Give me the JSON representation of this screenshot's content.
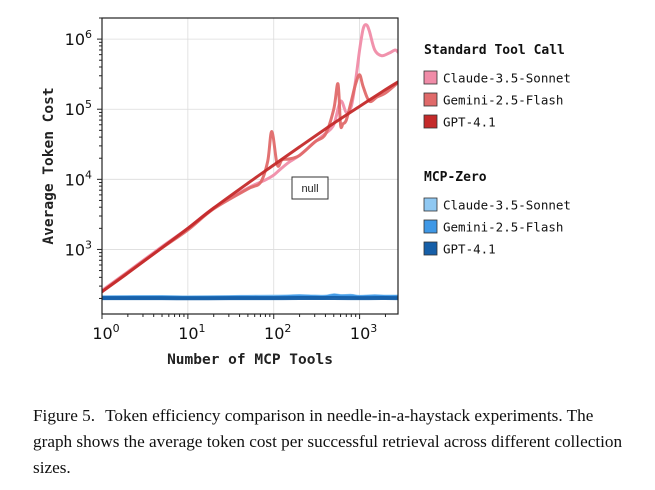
{
  "chart_data": {
    "type": "line",
    "x_scale": "log",
    "y_scale": "log",
    "xlabel": "Number of MCP Tools",
    "ylabel": "Average Token Cost",
    "xlim": [
      1,
      2800
    ],
    "ylim": [
      120,
      2000000
    ],
    "x_ticks": [
      1,
      10,
      100,
      1000
    ],
    "x_tick_labels": [
      {
        "base": "10",
        "exp": "0"
      },
      {
        "base": "10",
        "exp": "1"
      },
      {
        "base": "10",
        "exp": "2"
      },
      {
        "base": "10",
        "exp": "3"
      }
    ],
    "y_ticks": [
      1000,
      10000,
      100000,
      1000000
    ],
    "y_tick_labels": [
      {
        "base": "10",
        "exp": "3"
      },
      {
        "base": "10",
        "exp": "4"
      },
      {
        "base": "10",
        "exp": "5"
      },
      {
        "base": "10",
        "exp": "6"
      }
    ],
    "grid": true,
    "annotation": "null",
    "legend": {
      "placement": "right",
      "groups": [
        {
          "title": "Standard Tool Call",
          "entries": [
            {
              "label": "Claude-3.5-Sonnet",
              "color": "#f08ca8"
            },
            {
              "label": "Gemini-2.5-Flash",
              "color": "#e06a6a"
            },
            {
              "label": "GPT-4.1",
              "color": "#c42a2a"
            }
          ]
        },
        {
          "title": "MCP-Zero",
          "entries": [
            {
              "label": "Claude-3.5-Sonnet",
              "color": "#8fc8f2"
            },
            {
              "label": "Gemini-2.5-Flash",
              "color": "#3f98e6"
            },
            {
              "label": "GPT-4.1",
              "color": "#165fa8"
            }
          ]
        }
      ]
    },
    "series": [
      {
        "name": "Standard Tool Call / Claude-3.5-Sonnet",
        "color": "#f08ca8",
        "width": 3,
        "x": [
          1,
          2,
          5,
          10,
          20,
          50,
          80,
          100,
          120,
          150,
          200,
          300,
          400,
          500,
          600,
          700,
          800,
          900,
          1000,
          1100,
          1200,
          1300,
          1500,
          1800,
          2200,
          2600,
          2800
        ],
        "y": [
          260,
          480,
          1100,
          2000,
          3900,
          7500,
          9800,
          11500,
          14000,
          17500,
          22000,
          34000,
          45000,
          60000,
          130000,
          90000,
          110000,
          260000,
          700000,
          1400000,
          1600000,
          1300000,
          700000,
          580000,
          630000,
          700000,
          650000
        ]
      },
      {
        "name": "Standard Tool Call / Gemini-2.5-Flash",
        "color": "#e06a6a",
        "width": 3,
        "x": [
          1,
          2,
          5,
          10,
          20,
          50,
          70,
          85,
          95,
          110,
          125,
          150,
          200,
          300,
          400,
          500,
          560,
          600,
          640,
          700,
          800,
          900,
          1000,
          1100,
          1300,
          1600,
          2000,
          2800
        ],
        "y": [
          250,
          470,
          1050,
          1900,
          3800,
          7300,
          9000,
          18000,
          48000,
          16000,
          19000,
          19500,
          22000,
          34000,
          44000,
          100000,
          230000,
          60000,
          62000,
          70000,
          130000,
          230000,
          310000,
          210000,
          130000,
          150000,
          170000,
          240000
        ]
      },
      {
        "name": "Standard Tool Call / GPT-4.1",
        "color": "#c42a2a",
        "width": 3,
        "x": [
          1,
          2,
          5,
          10,
          20,
          50,
          100,
          200,
          500,
          1000,
          2000,
          2800
        ],
        "y": [
          250,
          460,
          1060,
          2000,
          3900,
          8800,
          16000,
          29000,
          63000,
          110000,
          190000,
          245000
        ]
      },
      {
        "name": "MCP-Zero / Claude-3.5-Sonnet",
        "color": "#8fc8f2",
        "width": 4,
        "x": [
          1,
          5,
          10,
          30,
          50,
          100,
          150,
          200,
          300,
          400,
          500,
          600,
          800,
          1000,
          1500,
          2000,
          2800
        ],
        "y": [
          208,
          210,
          207,
          209,
          211,
          212,
          214,
          216,
          213,
          212,
          222,
          216,
          218,
          211,
          215,
          212,
          213
        ]
      },
      {
        "name": "MCP-Zero / Gemini-2.5-Flash",
        "color": "#3f98e6",
        "width": 4,
        "x": [
          1,
          5,
          10,
          30,
          50,
          100,
          150,
          200,
          300,
          400,
          500,
          600,
          800,
          1000,
          1500,
          2000,
          2800
        ],
        "y": [
          205,
          206,
          204,
          206,
          207,
          206,
          210,
          213,
          209,
          208,
          218,
          213,
          214,
          208,
          212,
          209,
          210
        ]
      },
      {
        "name": "MCP-Zero / GPT-4.1",
        "color": "#165fa8",
        "width": 4,
        "x": [
          1,
          5,
          10,
          30,
          50,
          100,
          200,
          500,
          1000,
          2000,
          2800
        ],
        "y": [
          202,
          202,
          201,
          202,
          202,
          202,
          203,
          203,
          202,
          203,
          202
        ]
      }
    ]
  },
  "caption": {
    "label": "Figure 5.",
    "text": "Token efficiency comparison in needle-in-a-haystack experiments. The graph shows the average token cost per successful retrieval across different collection sizes."
  }
}
